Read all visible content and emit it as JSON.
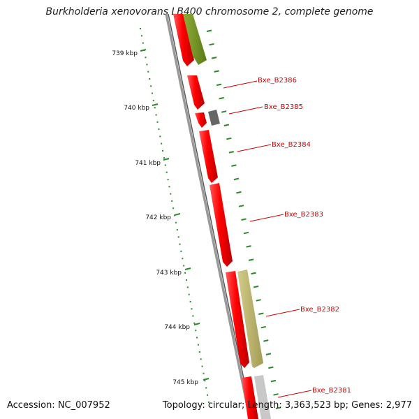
{
  "title": "Burkholderia xenovorans LB400 chromosome 2, complete genome",
  "accession_label": "Accession: NC_007952",
  "stats_label": "Topology: circular; Length: 3,363,523 bp; Genes: 2,977",
  "colors": {
    "backbone": "#8c8c8c",
    "gene_red": "#ee0000",
    "gene_olive": "#6e8c1e",
    "gene_khaki": "#b8b26a",
    "gene_gray": "#666666",
    "gene_light": "#bdbdbd",
    "tick": "#2a8a2a",
    "label": "#cc0000"
  },
  "ruler": [
    "739 kbp",
    "740 kbp",
    "741 kbp",
    "742 kbp",
    "743 kbp",
    "744 kbp",
    "745 kbp"
  ],
  "gene_labels": [
    "Bxe_B2386",
    "Bxe_B2385",
    "Bxe_B2384",
    "Bxe_B2383",
    "Bxe_B2382",
    "Bxe_B2381"
  ]
}
